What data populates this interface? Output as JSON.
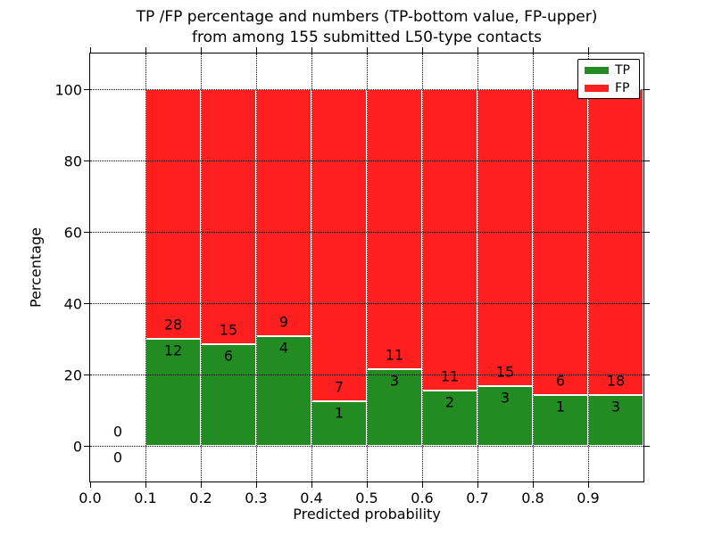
{
  "chart_data": {
    "type": "bar",
    "stacked": true,
    "title_lines": [
      "TP /FP percentage and numbers (TP-bottom value, FP-upper)",
      "from among 155 submitted L50-type contacts"
    ],
    "xlabel": "Predicted probability",
    "ylabel": "Percentage",
    "xlim": [
      0.0,
      1.0
    ],
    "ylim": [
      -10,
      110
    ],
    "xticks": {
      "values": [
        0.0,
        0.1,
        0.2,
        0.3,
        0.4,
        0.5,
        0.6,
        0.7,
        0.8,
        0.9
      ],
      "labels": [
        "0.0",
        "0.1",
        "0.2",
        "0.3",
        "0.4",
        "0.5",
        "0.6",
        "0.7",
        "0.8",
        "0.9"
      ]
    },
    "yticks": {
      "values": [
        0,
        20,
        40,
        60,
        80,
        100
      ],
      "labels": [
        "0",
        "20",
        "40",
        "60",
        "80",
        "100"
      ]
    },
    "grid": {
      "style": "dotted",
      "color": "#000000",
      "above_bars": true
    },
    "legend": {
      "position": "upper-right",
      "entries": [
        {
          "label": "TP",
          "color": "#228b22"
        },
        {
          "label": "FP",
          "color": "#ff1f1f"
        }
      ]
    },
    "total_contacts": 155,
    "bin_width": 0.1,
    "bins": [
      {
        "x_start": 0.0,
        "tp_count": 0,
        "fp_count": 0,
        "tp_pct": 0,
        "fp_pct": 0
      },
      {
        "x_start": 0.1,
        "tp_count": 12,
        "fp_count": 28,
        "tp_pct": 30.0,
        "fp_pct": 70.0
      },
      {
        "x_start": 0.2,
        "tp_count": 6,
        "fp_count": 15,
        "tp_pct": 28.6,
        "fp_pct": 71.4
      },
      {
        "x_start": 0.3,
        "tp_count": 4,
        "fp_count": 9,
        "tp_pct": 30.8,
        "fp_pct": 69.2
      },
      {
        "x_start": 0.4,
        "tp_count": 1,
        "fp_count": 7,
        "tp_pct": 12.5,
        "fp_pct": 87.5
      },
      {
        "x_start": 0.5,
        "tp_count": 3,
        "fp_count": 11,
        "tp_pct": 21.4,
        "fp_pct": 78.6
      },
      {
        "x_start": 0.6,
        "tp_count": 2,
        "fp_count": 11,
        "tp_pct": 15.4,
        "fp_pct": 84.6
      },
      {
        "x_start": 0.7,
        "tp_count": 3,
        "fp_count": 15,
        "tp_pct": 16.7,
        "fp_pct": 83.3
      },
      {
        "x_start": 0.8,
        "tp_count": 1,
        "fp_count": 6,
        "tp_pct": 14.3,
        "fp_pct": 85.7
      },
      {
        "x_start": 0.9,
        "tp_count": 3,
        "fp_count": 18,
        "tp_pct": 14.3,
        "fp_pct": 85.7
      }
    ]
  }
}
